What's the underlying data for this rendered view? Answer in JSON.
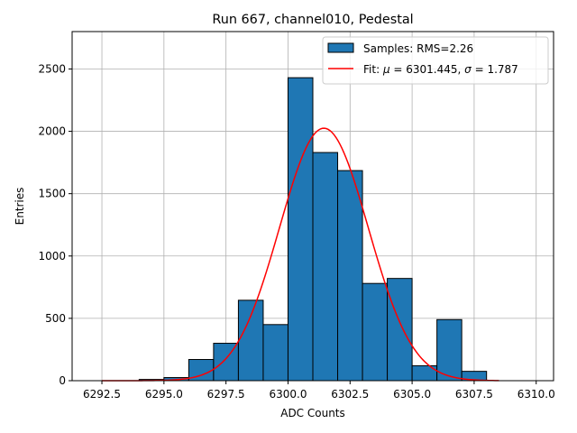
{
  "chart_data": {
    "type": "bar",
    "title": "Run 667, channel010, Pedestal",
    "xlabel": "ADC Counts",
    "ylabel": "Entries",
    "xlim": [
      6291.3,
      6310.7
    ],
    "ylim": [
      0,
      2800
    ],
    "xticks": [
      6292.5,
      6295.0,
      6297.5,
      6300.0,
      6302.5,
      6305.0,
      6307.5,
      6310.0
    ],
    "xtick_labels": [
      "6292.5",
      "6295.0",
      "6297.5",
      "6300.0",
      "6302.5",
      "6305.0",
      "6307.5",
      "6310.0"
    ],
    "yticks": [
      0,
      500,
      1000,
      1500,
      2000,
      2500
    ],
    "ytick_labels": [
      "0",
      "500",
      "1000",
      "1500",
      "2000",
      "2500"
    ],
    "grid": true,
    "legend_position": "top-right",
    "colors": {
      "bars": "#1f77b4",
      "bar_edge": "#000000",
      "fit": "#ff0000",
      "grid": "#b0b0b0"
    },
    "series": [
      {
        "name": "Samples: RMS=2.26",
        "kind": "histogram",
        "bin_edges": [
          6294,
          6295,
          6296,
          6297,
          6298,
          6299,
          6300,
          6301,
          6302,
          6303,
          6304,
          6305,
          6306,
          6307,
          6308
        ],
        "values": [
          10,
          25,
          170,
          300,
          645,
          450,
          2430,
          1830,
          1685,
          780,
          820,
          120,
          490,
          75
        ]
      },
      {
        "name": "Fit: μ = 6301.445, σ = 1.787",
        "kind": "gaussian",
        "mu": 6301.445,
        "sigma": 1.787,
        "amplitude": 2025,
        "x_range": [
          6292.5,
          6308.5
        ]
      }
    ]
  },
  "legend": {
    "samples_label": "Samples: RMS=2.26",
    "fit_prefix": "Fit: ",
    "fit_mu_symbol": "μ",
    "fit_mu_value": " = 6301.445, ",
    "fit_sigma_symbol": "σ",
    "fit_sigma_value": " = 1.787"
  }
}
